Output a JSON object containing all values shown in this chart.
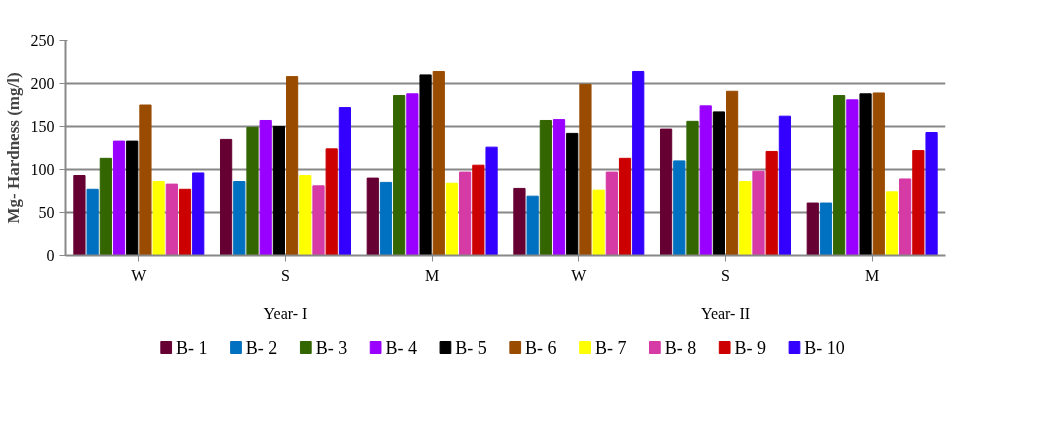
{
  "chart_data": {
    "type": "bar",
    "ylabel": "Mg- Hardness (mg/l)",
    "categories": [
      "W",
      "S",
      "M",
      "W",
      "S",
      "M"
    ],
    "annotations": [
      "Year- I",
      "Year- II"
    ],
    "ylim": [
      0,
      250
    ],
    "yticks": [
      0,
      50,
      100,
      150,
      200,
      250
    ],
    "grid": "y",
    "legend": "bottom",
    "series": [
      {
        "name": "B- 1",
        "color": "#660033",
        "values": [
          93,
          135,
          90,
          78,
          147,
          61
        ]
      },
      {
        "name": "B- 2",
        "color": "#0070c0",
        "values": [
          77,
          86,
          85,
          69,
          110,
          61
        ]
      },
      {
        "name": "B- 3",
        "color": "#336600",
        "values": [
          113,
          149,
          186,
          157,
          156,
          186
        ]
      },
      {
        "name": "B- 4",
        "color": "#9900ff",
        "values": [
          133,
          157,
          188,
          158,
          174,
          181
        ]
      },
      {
        "name": "B- 5",
        "color": "#000000",
        "values": [
          133,
          150,
          210,
          142,
          167,
          188
        ]
      },
      {
        "name": "B- 6",
        "color": "#994c00",
        "values": [
          175,
          208,
          214,
          199,
          191,
          189
        ]
      },
      {
        "name": "B- 7",
        "color": "#ffff00",
        "values": [
          86,
          93,
          84,
          76,
          86,
          74
        ]
      },
      {
        "name": "B- 8",
        "color": "#d63aa5",
        "values": [
          83,
          81,
          97,
          97,
          98,
          89
        ]
      },
      {
        "name": "B- 9",
        "color": "#cc0000",
        "values": [
          77,
          124,
          105,
          113,
          121,
          122
        ]
      },
      {
        "name": "B- 10",
        "color": "#3300ff",
        "values": [
          96,
          172,
          126,
          214,
          162,
          143
        ]
      }
    ]
  }
}
